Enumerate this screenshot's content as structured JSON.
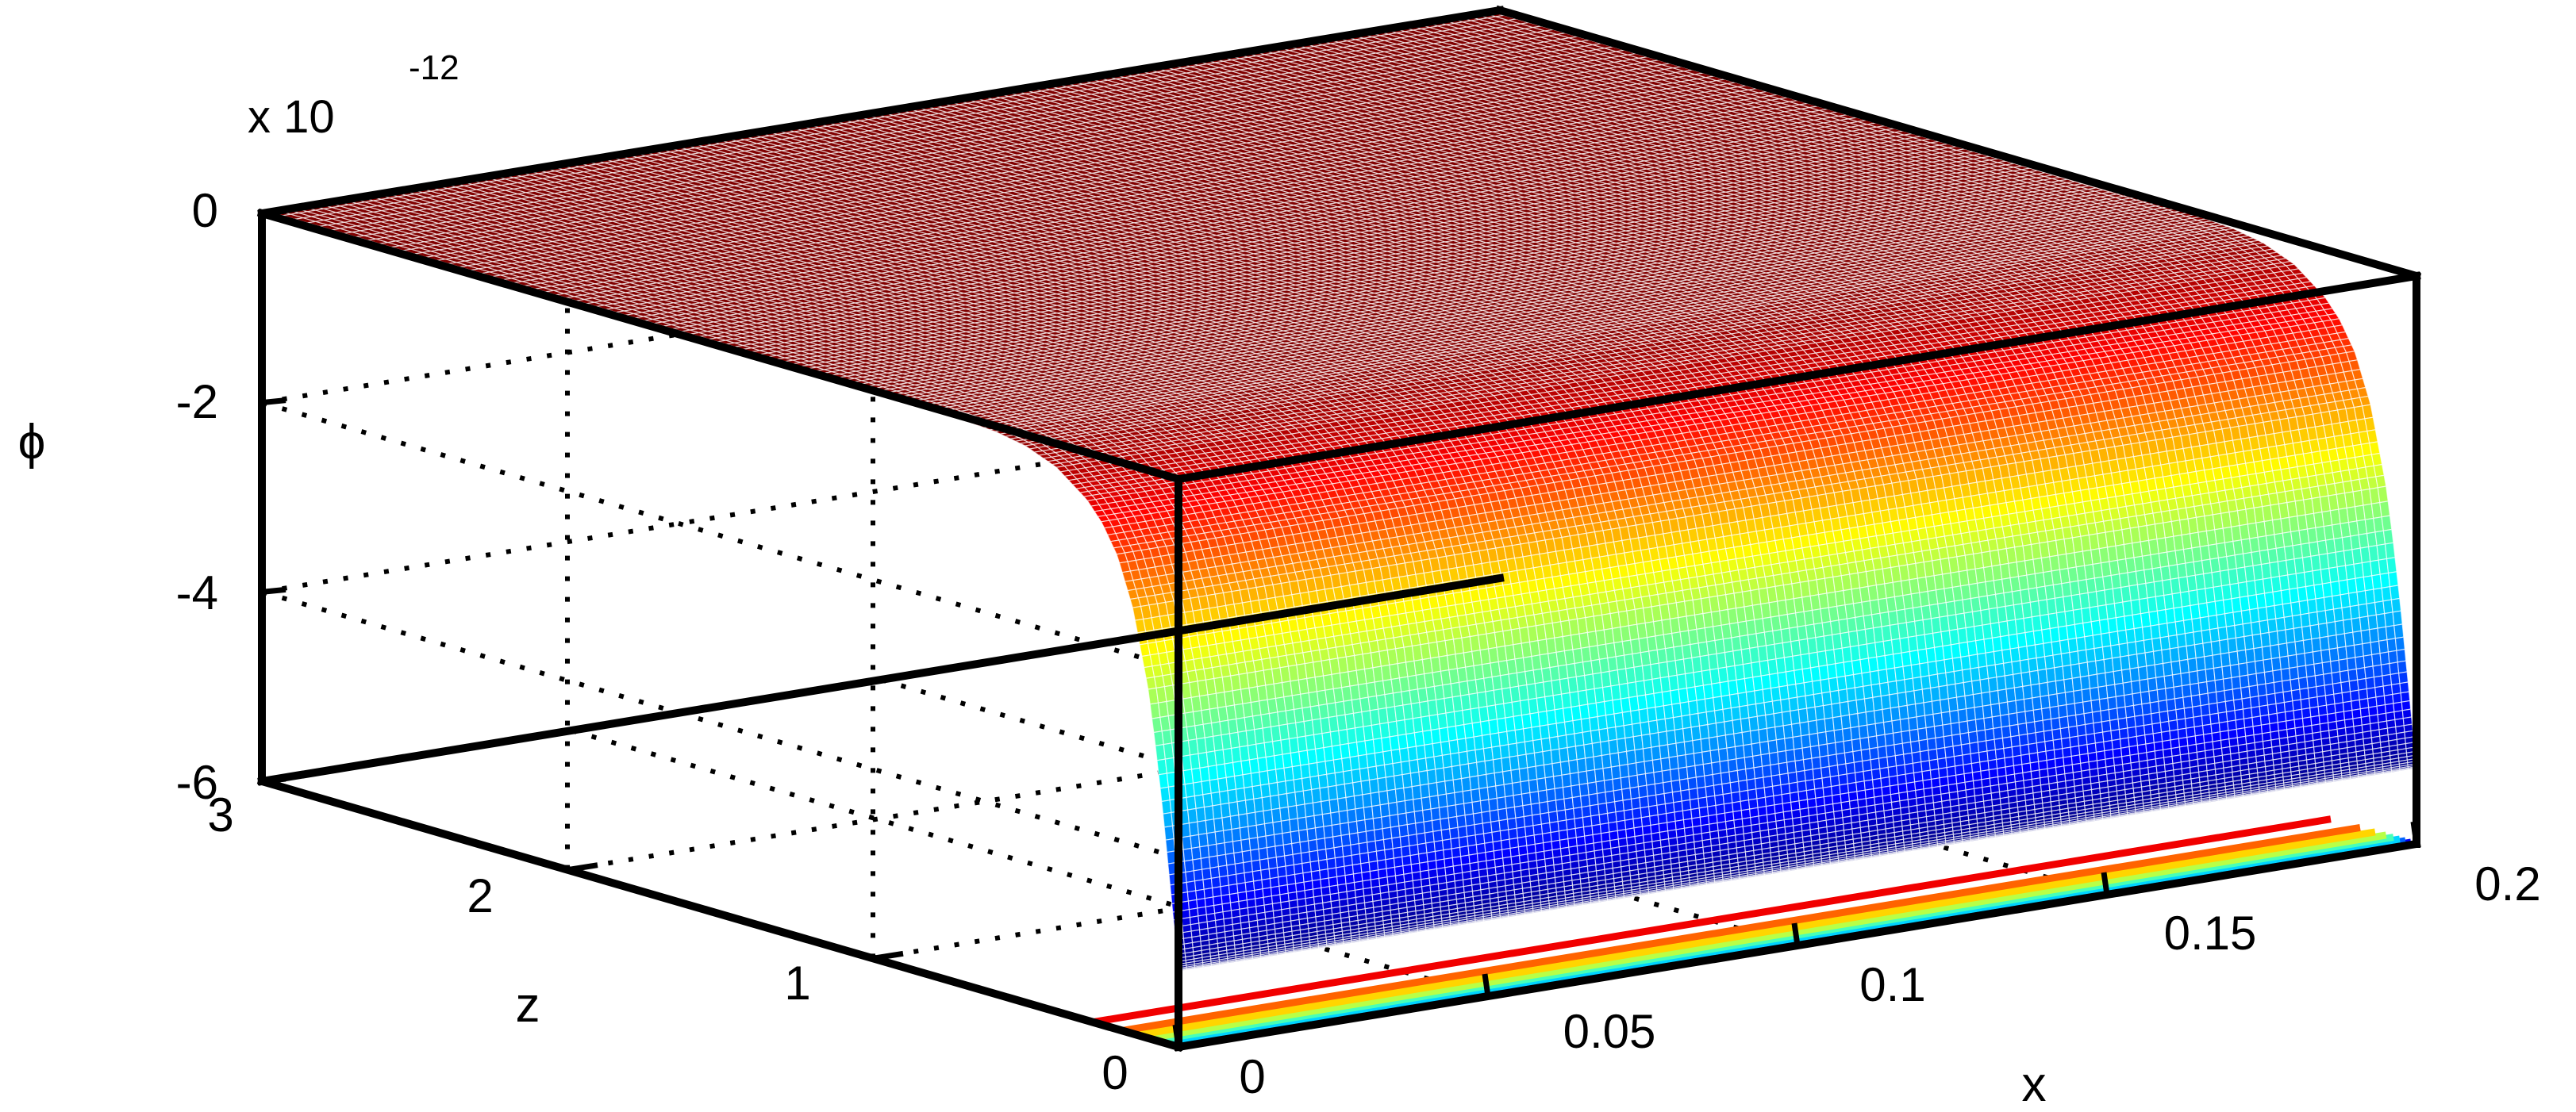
{
  "chart_data": {
    "type": "surface",
    "title": "",
    "xlabel": "x",
    "ylabel": "z",
    "zlabel": "ϕ",
    "zscale_label": "x 10",
    "zscale_exponent": "-12",
    "xlim": [
      0,
      0.2
    ],
    "ylim": [
      0,
      3
    ],
    "zlim": [
      -6,
      0
    ],
    "x_ticks": [
      {
        "value": 0,
        "label": "0"
      },
      {
        "value": 0.05,
        "label": "0.05"
      },
      {
        "value": 0.1,
        "label": "0.1"
      },
      {
        "value": 0.15,
        "label": "0.15"
      },
      {
        "value": 0.2,
        "label": "0.2"
      }
    ],
    "y_ticks": [
      {
        "value": 0,
        "label": "0"
      },
      {
        "value": 1,
        "label": "1"
      },
      {
        "value": 2,
        "label": "2"
      },
      {
        "value": 3,
        "label": "3"
      }
    ],
    "z_ticks": [
      {
        "value": 0,
        "label": "0"
      },
      {
        "value": -2,
        "label": "-2"
      },
      {
        "value": -4,
        "label": "-4"
      },
      {
        "value": -6,
        "label": "-6"
      }
    ],
    "surface_profile": {
      "description_of_variation": "phi depends on z only; constant along x",
      "z": [
        0,
        0.025,
        0.05,
        0.075,
        0.1,
        0.15,
        0.2,
        0.25,
        0.3,
        0.4,
        0.5,
        0.6,
        0.8,
        1.0,
        1.5,
        2.0,
        2.5,
        3.0
      ],
      "phi": [
        -5.2,
        -4.4,
        -3.6,
        -2.9,
        -2.3,
        -1.5,
        -1.0,
        -0.7,
        -0.5,
        -0.25,
        -0.12,
        -0.06,
        -0.02,
        -0.01,
        0,
        0,
        0,
        0
      ]
    },
    "colormap": "jet",
    "grid": true,
    "legend": "none"
  }
}
